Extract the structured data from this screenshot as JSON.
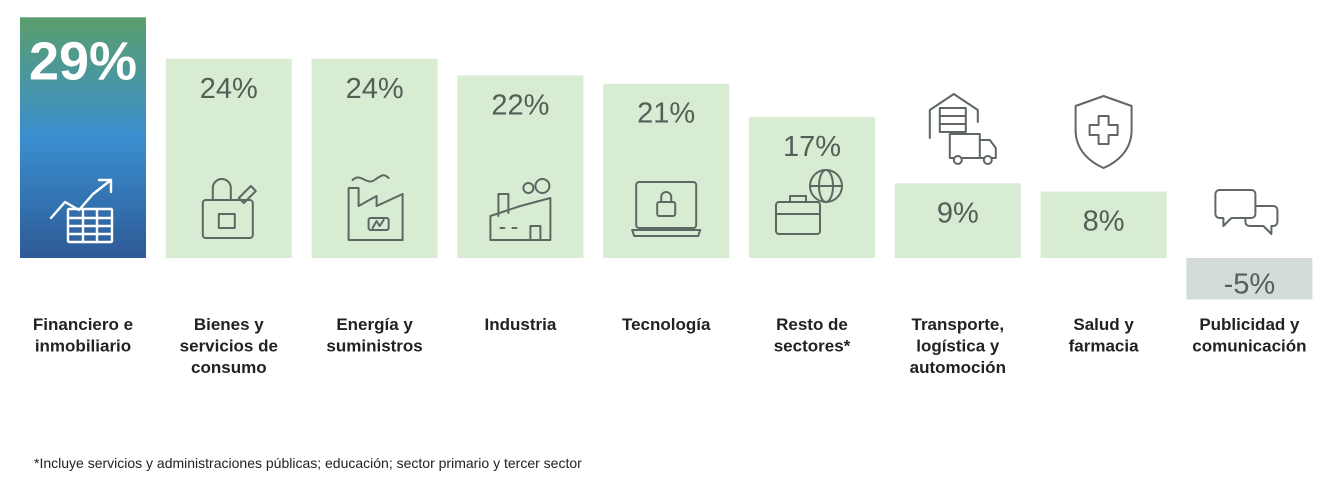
{
  "chart_data": {
    "type": "bar",
    "categories": [
      [
        "Financiero e",
        "inmobiliario"
      ],
      [
        "Bienes y",
        "servicios de",
        "consumo"
      ],
      [
        "Energía y",
        "suministros"
      ],
      [
        "Industria"
      ],
      [
        "Tecnología"
      ],
      [
        "Resto de",
        "sectores*"
      ],
      [
        "Transporte,",
        "logística y",
        "automoción"
      ],
      [
        "Salud y",
        "farmacia"
      ],
      [
        "Publicidad y",
        "comunicación"
      ]
    ],
    "values": [
      29,
      24,
      24,
      22,
      21,
      17,
      9,
      8,
      -5
    ],
    "value_labels": [
      "29%",
      "24%",
      "24%",
      "22%",
      "21%",
      "17%",
      "9%",
      "8%",
      "-5%"
    ],
    "icons": [
      "growth-chart-icon",
      "shopping-bag-icon",
      "factory-energy-icon",
      "factory-icon",
      "laptop-lock-icon",
      "briefcase-globe-icon",
      "warehouse-truck-icon",
      "shield-cross-icon",
      "chat-bubbles-icon"
    ],
    "ylim": [
      -5,
      29
    ],
    "grid": false,
    "legend": "none",
    "colors": {
      "highlight_top": "#5a9e6c",
      "highlight_mid": "#3a8fd0",
      "highlight_bottom": "#2e5a96",
      "bar": "#d7ecd2",
      "negative_bar": "#d3dcd9",
      "label": "#555e58",
      "icon": "#5f6763",
      "text": "#222222"
    }
  },
  "footnote": "*Incluye servicios y administraciones públicas; educación; sector primario y tercer sector"
}
